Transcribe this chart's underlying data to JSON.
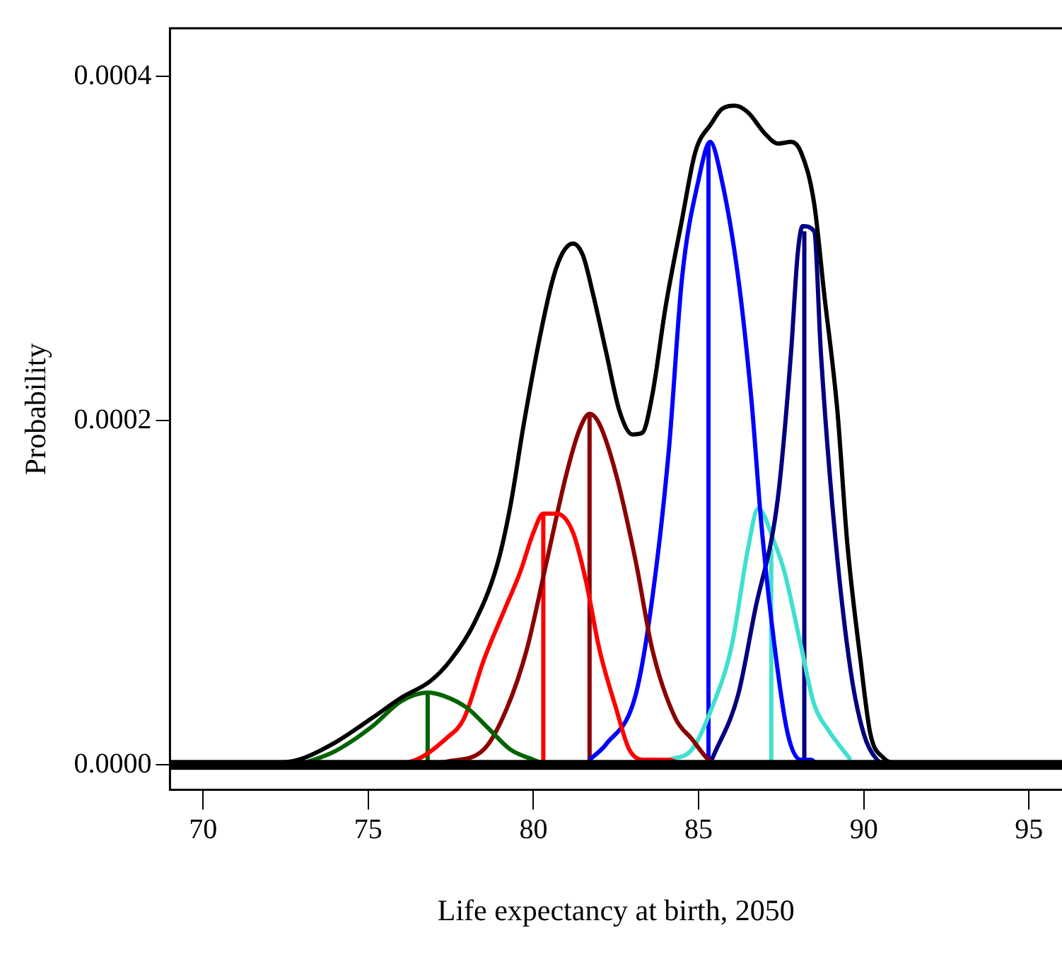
{
  "chart_data": {
    "type": "line",
    "xlabel": "Life expectancy at birth, 2050",
    "ylabel": "Probability",
    "xlim": [
      69,
      96
    ],
    "ylim": [
      -1.45e-05,
      0.000428
    ],
    "xticks": [
      70,
      75,
      80,
      85,
      90,
      95
    ],
    "yticks": [
      {
        "value": 0,
        "label": "0.0000"
      },
      {
        "value": 0.0002,
        "label": "0.0002"
      },
      {
        "value": 0.0004,
        "label": "0.0004"
      }
    ],
    "grid": false,
    "legend": false,
    "ref_lines": [
      {
        "axis": "y",
        "value": 0,
        "color": "#000000"
      }
    ],
    "series": [
      {
        "color": "#000000",
        "x": [
          71.5,
          72.9,
          74.0,
          75.1,
          76.0,
          76.9,
          77.5,
          78.2,
          78.9,
          79.3,
          79.7,
          80.2,
          80.6,
          80.9,
          81.2,
          81.5,
          81.8,
          82.2,
          82.6,
          83.0,
          83.3,
          83.6,
          84.0,
          84.5,
          84.9,
          85.4,
          85.7,
          86.1,
          86.5,
          87.0,
          87.4,
          87.8,
          88.1,
          88.5,
          88.8,
          89.2,
          89.5,
          89.9,
          90.2,
          90.6,
          91.0
        ],
        "values": [
          0,
          3e-06,
          1.3e-05,
          2.7e-05,
          3.9e-05,
          4.9e-05,
          6.1e-05,
          8.2e-05,
          0.000116,
          0.00015,
          0.000197,
          0.000249,
          0.000283,
          0.000298,
          0.000303,
          0.000296,
          0.000274,
          0.00024,
          0.000206,
          0.000192,
          0.000193,
          0.000215,
          0.000266,
          0.000317,
          0.000356,
          0.000373,
          0.000381,
          0.000383,
          0.000379,
          0.000367,
          0.000361,
          0.000362,
          0.000356,
          0.000326,
          0.000274,
          0.000206,
          0.000129,
          6.1e-05,
          1.8e-05,
          4e-06,
          0
        ]
      },
      {
        "color": "#006400",
        "x": [
          72.9,
          74.0,
          75.1,
          76.0,
          76.8,
          77.3,
          78.0,
          78.6,
          79.3,
          80.0,
          80.4
        ],
        "values": [
          0,
          8e-06,
          2.2e-05,
          3.7e-05,
          4.2e-05,
          4e-05,
          3.3e-05,
          2.2e-05,
          9e-06,
          3e-06,
          0
        ]
      },
      {
        "color": "#ff0000",
        "x": [
          75.1,
          76.3,
          77.4,
          77.9,
          78.5,
          79.1,
          79.6,
          80.0,
          80.3,
          80.7,
          81.2,
          81.6,
          82.0,
          82.5,
          82.9,
          83.4,
          84.1,
          84.5
        ],
        "values": [
          0,
          2e-06,
          1.6e-05,
          2.7e-05,
          6.1e-05,
          8.9e-05,
          0.000112,
          0.000135,
          0.000146,
          0.000146,
          0.000135,
          0.000106,
          6.7e-05,
          3.3e-05,
          9e-06,
          3e-06,
          3e-06,
          0
        ]
      },
      {
        "color": "#8b0000",
        "x": [
          76.5,
          77.4,
          78.5,
          79.2,
          79.8,
          80.4,
          81.0,
          81.4,
          81.7,
          82.0,
          82.5,
          83.1,
          83.6,
          84.3,
          84.8,
          85.3,
          85.6
        ],
        "values": [
          0,
          2e-06,
          9e-06,
          3.3e-05,
          6.7e-05,
          0.000118,
          0.000169,
          0.000195,
          0.000204,
          0.000198,
          0.000169,
          0.000118,
          6.7e-05,
          2.7e-05,
          1.5e-05,
          3e-06,
          0
        ]
      },
      {
        "color": "#0000ff",
        "x": [
          81.7,
          82.2,
          83.1,
          83.6,
          84.1,
          84.5,
          85.0,
          85.35,
          85.7,
          86.2,
          86.6,
          86.9,
          87.3,
          87.7,
          88.1,
          88.4,
          88.6
        ],
        "values": [
          3e-06,
          1.2e-05,
          4.1e-05,
          9.7e-05,
          0.000183,
          0.000283,
          0.00034,
          0.000362,
          0.00034,
          0.000283,
          0.000212,
          0.00014,
          6.9e-05,
          1.8e-05,
          3e-06,
          3e-06,
          0
        ]
      },
      {
        "color": "#000080",
        "x": [
          85.4,
          86.2,
          86.7,
          87.4,
          87.8,
          88.0,
          88.15,
          88.5,
          88.7,
          89.1,
          89.6,
          90.0,
          90.4,
          90.8
        ],
        "values": [
          3e-06,
          4.1e-05,
          8.9e-05,
          0.000155,
          0.00024,
          0.000297,
          0.000313,
          0.00031,
          0.00024,
          0.00014,
          5.5e-05,
          1.8e-05,
          3e-06,
          0
        ]
      },
      {
        "color": "#40e0d0",
        "x": [
          84.1,
          84.8,
          85.4,
          86.0,
          86.5,
          86.8,
          87.3,
          87.6,
          88.1,
          88.5,
          88.9,
          89.6
        ],
        "values": [
          3e-06,
          9e-06,
          3.3e-05,
          6.9e-05,
          0.000126,
          0.000149,
          0.000129,
          0.000112,
          6.9e-05,
          3.5e-05,
          2.1e-05,
          3e-06
        ]
      },
      {
        "color": "#006400",
        "x": [
          76.8,
          76.8
        ],
        "values": [
          0,
          4.2e-05
        ]
      },
      {
        "color": "#ff0000",
        "x": [
          80.3,
          80.3
        ],
        "values": [
          0,
          0.000146
        ]
      },
      {
        "color": "#8b0000",
        "x": [
          81.7,
          81.7
        ],
        "values": [
          0,
          0.000204
        ]
      },
      {
        "color": "#0000ff",
        "x": [
          85.3,
          85.3
        ],
        "values": [
          0,
          0.000362
        ]
      },
      {
        "color": "#40e0d0",
        "x": [
          87.2,
          87.2
        ],
        "values": [
          0,
          0.000126
        ]
      },
      {
        "color": "#000080",
        "x": [
          88.2,
          88.2
        ],
        "values": [
          0,
          0.00031
        ]
      }
    ]
  }
}
